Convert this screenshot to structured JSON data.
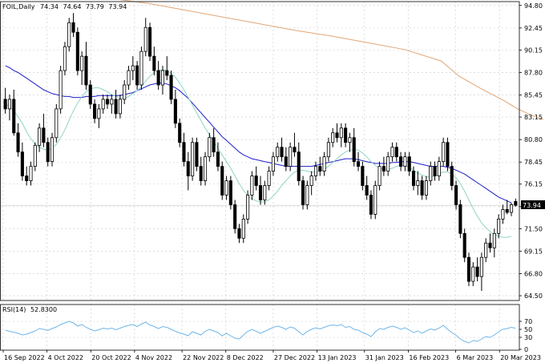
{
  "header": {
    "symbol": "FOIL,Daily",
    "open": "74.34",
    "high": "74.64",
    "low": "73.79",
    "close": "73.94"
  },
  "rsi_header": {
    "label": "RSI(14)",
    "value": "52.8300"
  },
  "price_tag": "73.94",
  "colors": {
    "ma_fast": "#8fd3c7",
    "ma_slow": "#1e1ec8",
    "ma_long": "#e0a676",
    "rsi": "#6fb6e8",
    "price_tag_bg": "#000000",
    "grid": "#c8c8c8"
  },
  "chart_data": [
    {
      "type": "candlestick",
      "title": "FOIL,Daily",
      "y_ticks": [
        "94.80",
        "92.45",
        "90.15",
        "87.80",
        "85.45",
        "83.15",
        "80.80",
        "78.45",
        "76.15",
        "73.80",
        "71.50",
        "69.15",
        "66.80",
        "64.50"
      ],
      "x_ticks": [
        "16 Sep 2022",
        "4 Oct 2022",
        "20 Oct 2022",
        "4 Nov 2022",
        "22 Nov 2022",
        "8 Dec 2022",
        "27 Dec 2022",
        "13 Jan 2023",
        "31 Jan 2023",
        "16 Feb 2023",
        "6 Mar 2023",
        "20 Mar 2023"
      ],
      "ylim": [
        64.0,
        95.2
      ],
      "grid": true,
      "ohlc": [
        [
          85.0,
          86.2,
          83.5,
          84.0
        ],
        [
          84.0,
          85.5,
          82.8,
          85.0
        ],
        [
          85.0,
          86.0,
          81.2,
          81.5
        ],
        [
          81.5,
          82.5,
          79.0,
          79.5
        ],
        [
          79.5,
          80.5,
          76.5,
          77.0
        ],
        [
          77.0,
          78.0,
          76.0,
          76.5
        ],
        [
          76.5,
          78.5,
          76.0,
          78.0
        ],
        [
          78.0,
          80.5,
          77.5,
          80.2
        ],
        [
          80.2,
          82.5,
          79.5,
          82.0
        ],
        [
          82.0,
          83.5,
          80.0,
          80.5
        ],
        [
          80.5,
          81.0,
          78.0,
          78.5
        ],
        [
          78.5,
          81.5,
          78.0,
          81.0
        ],
        [
          81.0,
          84.5,
          80.5,
          84.0
        ],
        [
          84.0,
          88.5,
          83.5,
          88.0
        ],
        [
          88.0,
          91.0,
          87.5,
          90.5
        ],
        [
          90.5,
          93.5,
          90.0,
          93.0
        ],
        [
          93.0,
          94.0,
          91.5,
          92.0
        ],
        [
          92.0,
          92.5,
          87.5,
          88.0
        ],
        [
          88.0,
          90.0,
          86.5,
          89.5
        ],
        [
          89.5,
          91.0,
          86.0,
          86.5
        ],
        [
          86.5,
          87.0,
          84.0,
          84.5
        ],
        [
          84.5,
          85.0,
          82.5,
          83.0
        ],
        [
          83.0,
          84.5,
          82.0,
          84.0
        ],
        [
          84.0,
          85.5,
          83.5,
          85.0
        ],
        [
          85.0,
          85.5,
          84.0,
          84.5
        ],
        [
          84.5,
          85.5,
          83.5,
          85.0
        ],
        [
          85.0,
          86.0,
          83.0,
          83.5
        ],
        [
          83.5,
          85.5,
          83.0,
          85.0
        ],
        [
          85.0,
          87.0,
          84.5,
          86.5
        ],
        [
          86.5,
          88.5,
          86.0,
          88.0
        ],
        [
          88.0,
          89.5,
          87.0,
          88.5
        ],
        [
          88.5,
          89.0,
          86.0,
          86.5
        ],
        [
          86.5,
          90.5,
          86.0,
          90.0
        ],
        [
          90.0,
          93.5,
          89.5,
          92.5
        ],
        [
          92.5,
          93.0,
          89.0,
          89.5
        ],
        [
          89.5,
          90.5,
          87.5,
          88.0
        ],
        [
          88.0,
          89.0,
          86.0,
          86.5
        ],
        [
          86.5,
          88.5,
          85.5,
          88.0
        ],
        [
          88.0,
          89.5,
          87.0,
          87.5
        ],
        [
          87.5,
          88.0,
          84.5,
          85.0
        ],
        [
          85.0,
          86.0,
          82.0,
          82.5
        ],
        [
          82.5,
          83.0,
          80.0,
          80.5
        ],
        [
          80.5,
          81.5,
          78.0,
          78.5
        ],
        [
          78.5,
          79.5,
          75.5,
          77.0
        ],
        [
          77.0,
          81.0,
          76.5,
          80.5
        ],
        [
          80.5,
          81.0,
          77.5,
          78.0
        ],
        [
          78.0,
          79.0,
          76.0,
          76.5
        ],
        [
          76.5,
          79.5,
          76.0,
          79.0
        ],
        [
          79.0,
          81.5,
          78.5,
          81.0
        ],
        [
          81.0,
          82.0,
          79.0,
          79.5
        ],
        [
          79.5,
          80.5,
          77.5,
          78.0
        ],
        [
          78.0,
          78.5,
          74.5,
          75.0
        ],
        [
          75.0,
          77.0,
          74.5,
          76.5
        ],
        [
          76.5,
          77.0,
          73.5,
          74.0
        ],
        [
          74.0,
          74.5,
          71.0,
          71.5
        ],
        [
          71.5,
          72.0,
          70.0,
          70.5
        ],
        [
          70.5,
          73.0,
          70.0,
          72.5
        ],
        [
          72.5,
          75.5,
          72.0,
          75.0
        ],
        [
          75.0,
          77.5,
          74.5,
          77.0
        ],
        [
          77.0,
          78.0,
          75.5,
          76.0
        ],
        [
          76.0,
          77.0,
          74.0,
          74.5
        ],
        [
          74.5,
          76.5,
          74.0,
          76.0
        ],
        [
          76.0,
          78.0,
          75.5,
          77.5
        ],
        [
          77.5,
          79.5,
          77.0,
          79.0
        ],
        [
          79.0,
          80.5,
          78.5,
          80.0
        ],
        [
          80.0,
          81.0,
          78.5,
          79.0
        ],
        [
          79.0,
          80.0,
          77.5,
          78.0
        ],
        [
          78.0,
          80.5,
          77.5,
          80.0
        ],
        [
          80.0,
          81.5,
          79.0,
          79.5
        ],
        [
          79.5,
          80.5,
          76.0,
          76.5
        ],
        [
          76.5,
          77.0,
          73.5,
          74.0
        ],
        [
          74.0,
          76.5,
          73.5,
          76.0
        ],
        [
          76.0,
          77.5,
          75.0,
          77.0
        ],
        [
          77.0,
          78.5,
          76.5,
          78.0
        ],
        [
          78.0,
          79.0,
          77.0,
          77.5
        ],
        [
          77.5,
          79.5,
          77.0,
          79.0
        ],
        [
          79.0,
          81.0,
          78.5,
          80.5
        ],
        [
          80.5,
          82.0,
          80.0,
          81.5
        ],
        [
          81.5,
          82.5,
          80.5,
          81.0
        ],
        [
          81.0,
          82.5,
          80.0,
          82.0
        ],
        [
          82.0,
          82.5,
          80.0,
          80.5
        ],
        [
          80.5,
          81.5,
          79.5,
          81.0
        ],
        [
          81.0,
          82.0,
          78.0,
          78.5
        ],
        [
          78.5,
          79.5,
          77.5,
          78.0
        ],
        [
          78.0,
          78.5,
          75.5,
          76.0
        ],
        [
          76.0,
          77.0,
          74.5,
          75.0
        ],
        [
          75.0,
          75.5,
          72.5,
          73.0
        ],
        [
          73.0,
          76.5,
          72.5,
          76.0
        ],
        [
          76.0,
          78.5,
          75.5,
          78.0
        ],
        [
          78.0,
          79.0,
          77.0,
          77.5
        ],
        [
          77.5,
          79.5,
          77.0,
          79.0
        ],
        [
          79.0,
          80.5,
          78.5,
          80.0
        ],
        [
          80.0,
          80.5,
          78.5,
          79.0
        ],
        [
          79.0,
          79.5,
          77.5,
          78.0
        ],
        [
          78.0,
          79.5,
          77.5,
          79.0
        ],
        [
          79.0,
          79.5,
          77.0,
          77.5
        ],
        [
          77.5,
          78.0,
          75.5,
          76.0
        ],
        [
          76.0,
          77.5,
          75.0,
          76.5
        ],
        [
          76.5,
          77.0,
          74.5,
          75.0
        ],
        [
          75.0,
          77.0,
          74.5,
          76.5
        ],
        [
          76.5,
          78.5,
          76.0,
          78.0
        ],
        [
          78.0,
          78.5,
          76.5,
          77.0
        ],
        [
          77.0,
          79.0,
          76.5,
          78.5
        ],
        [
          78.5,
          81.0,
          78.0,
          80.5
        ],
        [
          80.5,
          81.0,
          77.5,
          78.0
        ],
        [
          78.0,
          78.5,
          75.5,
          76.0
        ],
        [
          76.0,
          76.5,
          73.5,
          74.0
        ],
        [
          74.0,
          74.5,
          70.5,
          71.0
        ],
        [
          71.0,
          71.5,
          68.0,
          68.5
        ],
        [
          68.5,
          69.0,
          65.5,
          66.0
        ],
        [
          66.0,
          68.0,
          65.5,
          67.5
        ],
        [
          67.5,
          68.5,
          66.0,
          66.5
        ],
        [
          66.5,
          69.0,
          65.0,
          68.5
        ],
        [
          68.5,
          70.5,
          68.0,
          70.0
        ],
        [
          70.0,
          71.0,
          69.0,
          69.5
        ],
        [
          69.5,
          71.5,
          68.5,
          71.0
        ],
        [
          71.0,
          73.0,
          70.5,
          72.5
        ],
        [
          72.5,
          74.0,
          72.0,
          73.5
        ],
        [
          73.5,
          74.5,
          73.0,
          73.2
        ],
        [
          73.2,
          74.2,
          72.8,
          74.0
        ],
        [
          74.34,
          74.64,
          73.79,
          73.94
        ]
      ],
      "ma_fast": [
        84.5,
        84.2,
        83.8,
        83.2,
        82.5,
        81.6,
        80.9,
        80.3,
        80.0,
        79.8,
        79.7,
        79.9,
        80.3,
        81.0,
        81.8,
        82.8,
        83.8,
        84.6,
        85.3,
        85.8,
        86.1,
        86.2,
        86.2,
        86.0,
        85.8,
        85.5,
        85.3,
        85.1,
        85.1,
        85.3,
        85.6,
        85.9,
        86.3,
        86.9,
        87.4,
        87.8,
        88.0,
        88.1,
        88.0,
        87.7,
        87.3,
        86.7,
        86.0,
        85.2,
        84.4,
        83.6,
        82.8,
        82.0,
        81.3,
        80.6,
        79.9,
        79.2,
        78.5,
        77.8,
        77.0,
        76.2,
        75.5,
        74.9,
        74.6,
        74.4,
        74.3,
        74.3,
        74.5,
        74.9,
        75.4,
        76.0,
        76.5,
        77.0,
        77.4,
        77.6,
        77.6,
        77.5,
        77.4,
        77.4,
        77.5,
        77.7,
        78.0,
        78.4,
        78.8,
        79.2,
        79.5,
        79.7,
        79.8,
        79.7,
        79.4,
        79.0,
        78.5,
        78.1,
        77.8,
        77.7,
        77.7,
        77.8,
        78.0,
        78.1,
        78.1,
        77.9,
        77.6,
        77.3,
        77.1,
        76.9,
        76.9,
        77.0,
        77.2,
        77.4,
        77.4,
        77.2,
        76.8,
        76.2,
        75.4,
        74.5,
        73.6,
        72.8,
        72.1,
        71.6,
        71.2,
        70.9,
        70.7,
        70.6,
        70.6,
        70.7
      ],
      "ma_slow": [
        88.5,
        88.3,
        88.0,
        87.8,
        87.5,
        87.2,
        86.9,
        86.6,
        86.3,
        86.0,
        85.8,
        85.6,
        85.5,
        85.4,
        85.3,
        85.3,
        85.2,
        85.2,
        85.2,
        85.3,
        85.3,
        85.3,
        85.4,
        85.4,
        85.4,
        85.4,
        85.4,
        85.4,
        85.5,
        85.6,
        85.7,
        85.9,
        86.1,
        86.3,
        86.5,
        86.6,
        86.7,
        86.7,
        86.6,
        86.4,
        86.2,
        85.9,
        85.5,
        85.1,
        84.6,
        84.1,
        83.6,
        83.1,
        82.6,
        82.1,
        81.6,
        81.1,
        80.7,
        80.3,
        79.9,
        79.5,
        79.2,
        79.0,
        78.8,
        78.7,
        78.6,
        78.5,
        78.4,
        78.3,
        78.2,
        78.1,
        78.0,
        78.0,
        78.0,
        78.0,
        78.0,
        78.0,
        78.0,
        78.1,
        78.2,
        78.3,
        78.4,
        78.5,
        78.6,
        78.7,
        78.8,
        78.8,
        78.8,
        78.7,
        78.6,
        78.5,
        78.4,
        78.3,
        78.3,
        78.3,
        78.3,
        78.4,
        78.4,
        78.5,
        78.5,
        78.5,
        78.4,
        78.3,
        78.2,
        78.1,
        78.0,
        78.0,
        78.0,
        78.0,
        77.9,
        77.8,
        77.6,
        77.4,
        77.2,
        76.9,
        76.6,
        76.3,
        76.0,
        75.7,
        75.4,
        75.1,
        74.8,
        74.6,
        74.4,
        74.2
      ],
      "ma_long": [
        [
          30,
          95.5
        ],
        [
          40,
          95.0
        ],
        [
          50,
          94.3
        ],
        [
          60,
          93.6
        ],
        [
          70,
          92.9
        ],
        [
          80,
          92.2
        ],
        [
          90,
          91.6
        ],
        [
          100,
          90.9
        ],
        [
          110,
          90.2
        ],
        [
          120,
          89.0
        ],
        [
          125,
          87.4
        ],
        [
          131,
          86.1
        ],
        [
          137,
          84.9
        ],
        [
          141,
          84.0
        ],
        [
          145,
          83.3
        ],
        [
          148,
          82.9
        ]
      ]
    },
    {
      "type": "line",
      "title": "RSI(14) 52.8300",
      "y_ticks": [
        "70",
        "50",
        "30",
        "0"
      ],
      "ylim": [
        0,
        100
      ],
      "values": [
        48,
        45,
        43,
        40,
        36,
        38,
        42,
        46,
        52,
        50,
        47,
        52,
        56,
        62,
        66,
        70,
        66,
        58,
        62,
        55,
        50,
        46,
        49,
        53,
        51,
        53,
        49,
        53,
        57,
        60,
        62,
        57,
        63,
        68,
        61,
        57,
        52,
        57,
        55,
        50,
        45,
        41,
        38,
        34,
        44,
        40,
        36,
        45,
        50,
        46,
        42,
        34,
        40,
        34,
        28,
        26,
        36,
        45,
        50,
        45,
        40,
        45,
        50,
        55,
        58,
        55,
        50,
        56,
        53,
        44,
        36,
        45,
        50,
        54,
        51,
        55,
        59,
        61,
        59,
        62,
        55,
        57,
        50,
        48,
        42,
        38,
        32,
        44,
        52,
        50,
        55,
        58,
        55,
        50,
        54,
        48,
        42,
        46,
        40,
        46,
        51,
        48,
        53,
        60,
        50,
        42,
        35,
        26,
        20,
        16,
        22,
        20,
        26,
        32,
        30,
        36,
        44,
        50,
        52,
        55,
        52.83
      ]
    }
  ]
}
